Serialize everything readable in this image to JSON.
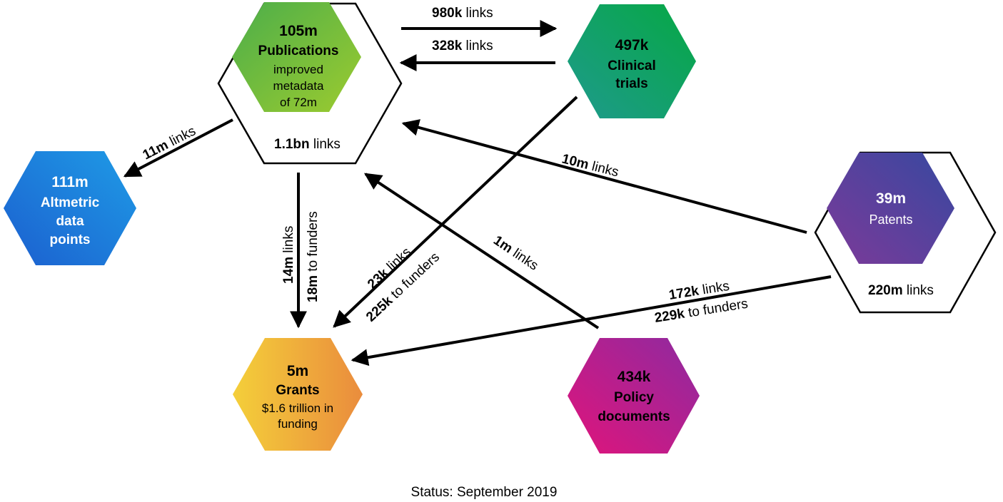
{
  "nodes": {
    "publications": {
      "count": "105m",
      "name": "Publications",
      "detail": [
        "improved",
        "metadata",
        "of 72m"
      ],
      "links_bold": "1.1bn",
      "links_text": " links",
      "colors": [
        "#4cae4a",
        "#9ccb2f"
      ]
    },
    "clinical": {
      "count": "497k",
      "name_lines": [
        "Clinical",
        "trials"
      ],
      "colors": [
        "#1e9a8c",
        "#06a844"
      ]
    },
    "altmetric": {
      "count": "111m",
      "name_lines": [
        "Altmetric",
        "data",
        "points"
      ],
      "colors": [
        "#1c5fcf",
        "#1e9be6"
      ]
    },
    "patents": {
      "count": "39m",
      "name": "Patents",
      "links_bold": "220m",
      "links_text": " links",
      "colors": [
        "#7c3a99",
        "#3748a0"
      ]
    },
    "grants": {
      "count": "5m",
      "name": "Grants",
      "detail": [
        "$1.6 trillion in",
        "funding"
      ],
      "colors": [
        "#f4cf3a",
        "#ea8c3d"
      ]
    },
    "policy": {
      "count": "434k",
      "name_lines": [
        "Policy",
        "documents"
      ],
      "colors": [
        "#e0147b",
        "#8e2aa0"
      ]
    }
  },
  "edges": {
    "pub_to_clinical": {
      "bold": "980k",
      "text": " links"
    },
    "clinical_to_pub": {
      "bold": "328k",
      "text": " links"
    },
    "pub_to_altmetric": {
      "bold": "11m",
      "text": " links"
    },
    "patents_to_pub": {
      "bold": "10m",
      "text": " links"
    },
    "pub_to_grants_a": {
      "bold": "14m",
      "text": " links"
    },
    "pub_to_grants_b": {
      "bold": "18m",
      "text": " to funders"
    },
    "clinical_to_grants_a": {
      "bold": "23k",
      "text": " links"
    },
    "clinical_to_grants_b": {
      "bold": "225k",
      "text": " to funders"
    },
    "policy_to_pub": {
      "bold": "1m",
      "text": " links"
    },
    "patents_to_grants_a": {
      "bold": "172k",
      "text": " links"
    },
    "patents_to_grants_b": {
      "bold": "229k",
      "text": " to funders"
    }
  },
  "footer": "Status: September 2019"
}
